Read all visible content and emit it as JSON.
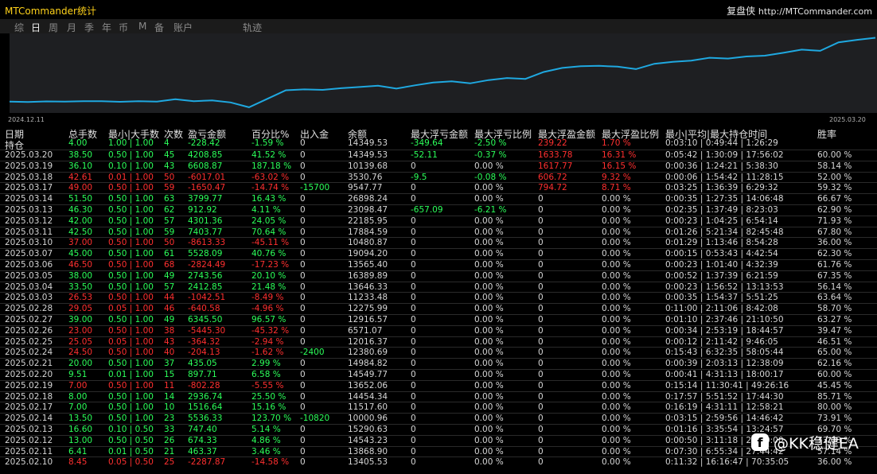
{
  "window": {
    "title": "MTCommander统计",
    "brand": "复盘侠",
    "url": "http://MTCommander.com"
  },
  "tabs": [
    "综",
    "日",
    "周",
    "月",
    "季",
    "年",
    "币",
    "M",
    "备",
    "账户",
    "轨迹"
  ],
  "active_tab": "日",
  "chart": {
    "start_label": "2024.12.11",
    "end_label": "2025.03.20",
    "line_color": "#1fa8e0"
  },
  "headers": [
    "日期",
    "总手数",
    "最小|大手数",
    "次数",
    "盈亏金额",
    "百分比%",
    "出入金",
    "余额",
    "最大浮亏金额",
    "最大浮亏比例",
    "最大浮盈金额",
    "最大浮盈比例",
    "最小|平均|最大持仓时间",
    "胜率"
  ],
  "subheader": {
    "label": "持仓",
    "total_lots": "4.00",
    "minmax": "1.00 | 1.00",
    "count": "4",
    "pnl": "-228.42",
    "pct": "-1.59 %",
    "flow": "0",
    "balance": "14349.53",
    "max_float_loss": "-349.64",
    "max_float_loss_pct": "-2.50 %",
    "max_float_profit": "239.22",
    "max_float_profit_pct": "1.70 %",
    "hold_time": "0:03:10 | 0:49:44 | 1:26:29",
    "winrate": ""
  },
  "rows": [
    {
      "date": "2025.03.20",
      "lots": "38.50",
      "minmax": "0.50 | 1.00",
      "count": "45",
      "pnl": "4208.85",
      "pct": "41.52 %",
      "flow": "0",
      "balance": "14349.53",
      "mfl": "-52.11",
      "mflp": "-0.37 %",
      "mfp": "1633.78",
      "mfpp": "16.31 %",
      "hold": "0:05:42 | 1:30:09 | 17:56:02",
      "win": "60.00 %",
      "sign": "pos"
    },
    {
      "date": "2025.03.19",
      "lots": "36.10",
      "minmax": "0.10 | 1.00",
      "count": "43",
      "pnl": "6608.87",
      "pct": "187.18 %",
      "flow": "0",
      "balance": "10139.68",
      "mfl": "0",
      "mflp": "0.00 %",
      "mfp": "1617.77",
      "mfpp": "16.15 %",
      "hold": "0:00:36 | 1:24:21 | 5:38:30",
      "win": "58.14 %",
      "sign": "pos"
    },
    {
      "date": "2025.03.18",
      "lots": "42.61",
      "minmax": "0.01 | 1.00",
      "count": "50",
      "pnl": "-6017.01",
      "pct": "-63.02 %",
      "flow": "0",
      "balance": "3530.76",
      "mfl": "-9.5",
      "mflp": "-0.08 %",
      "mfp": "606.72",
      "mfpp": "9.32 %",
      "hold": "0:00:06 | 1:54:42 | 11:28:15",
      "win": "52.00 %",
      "sign": "neg"
    },
    {
      "date": "2025.03.17",
      "lots": "49.00",
      "minmax": "0.50 | 1.00",
      "count": "59",
      "pnl": "-1650.47",
      "pct": "-14.74 %",
      "flow": "-15700",
      "balance": "9547.77",
      "mfl": "0",
      "mflp": "0.00 %",
      "mfp": "794.72",
      "mfpp": "8.71 %",
      "hold": "0:03:25 | 1:36:39 | 6:29:32",
      "win": "59.32 %",
      "sign": "neg"
    },
    {
      "date": "2025.03.14",
      "lots": "51.50",
      "minmax": "0.50 | 1.00",
      "count": "63",
      "pnl": "3799.77",
      "pct": "16.43 %",
      "flow": "0",
      "balance": "26898.24",
      "mfl": "0",
      "mflp": "0.00 %",
      "mfp": "0",
      "mfpp": "0.00 %",
      "hold": "0:00:35 | 1:27:35 | 14:06:48",
      "win": "66.67 %",
      "sign": "pos"
    },
    {
      "date": "2025.03.13",
      "lots": "46.30",
      "minmax": "0.50 | 1.00",
      "count": "62",
      "pnl": "912.92",
      "pct": "4.11 %",
      "flow": "0",
      "balance": "23098.47",
      "mfl": "-657.09",
      "mflp": "-6.21 %",
      "mfp": "0",
      "mfpp": "0.00 %",
      "hold": "0:02:35 | 1:37:49 | 8:23:03",
      "win": "62.90 %",
      "sign": "pos"
    },
    {
      "date": "2025.03.12",
      "lots": "42.00",
      "minmax": "0.50 | 1.00",
      "count": "57",
      "pnl": "4301.36",
      "pct": "24.05 %",
      "flow": "0",
      "balance": "22185.95",
      "mfl": "0",
      "mflp": "0.00 %",
      "mfp": "0",
      "mfpp": "0.00 %",
      "hold": "0:00:23 | 1:04:25 | 6:54:14",
      "win": "71.93 %",
      "sign": "pos"
    },
    {
      "date": "2025.03.11",
      "lots": "42.50",
      "minmax": "0.50 | 1.00",
      "count": "59",
      "pnl": "7403.77",
      "pct": "70.64 %",
      "flow": "0",
      "balance": "17884.59",
      "mfl": "0",
      "mflp": "0.00 %",
      "mfp": "0",
      "mfpp": "0.00 %",
      "hold": "0:01:26 | 5:21:34 | 82:45:48",
      "win": "67.80 %",
      "sign": "pos"
    },
    {
      "date": "2025.03.10",
      "lots": "37.00",
      "minmax": "0.50 | 1.00",
      "count": "50",
      "pnl": "-8613.33",
      "pct": "-45.11 %",
      "flow": "0",
      "balance": "10480.87",
      "mfl": "0",
      "mflp": "0.00 %",
      "mfp": "0",
      "mfpp": "0.00 %",
      "hold": "0:01:29 | 1:13:46 | 8:54:28",
      "win": "36.00 %",
      "sign": "neg"
    },
    {
      "date": "2025.03.07",
      "lots": "45.00",
      "minmax": "0.50 | 1.00",
      "count": "61",
      "pnl": "5528.09",
      "pct": "40.76 %",
      "flow": "0",
      "balance": "19094.20",
      "mfl": "0",
      "mflp": "0.00 %",
      "mfp": "0",
      "mfpp": "0.00 %",
      "hold": "0:00:15 | 0:53:43 | 4:42:54",
      "win": "62.30 %",
      "sign": "pos"
    },
    {
      "date": "2025.03.06",
      "lots": "46.50",
      "minmax": "0.50 | 1.00",
      "count": "68",
      "pnl": "-2824.49",
      "pct": "-17.23 %",
      "flow": "0",
      "balance": "13565.40",
      "mfl": "0",
      "mflp": "0.00 %",
      "mfp": "0",
      "mfpp": "0.00 %",
      "hold": "0:00:23 | 1:01:40 | 4:32:39",
      "win": "61.76 %",
      "sign": "neg"
    },
    {
      "date": "2025.03.05",
      "lots": "38.00",
      "minmax": "0.50 | 1.00",
      "count": "49",
      "pnl": "2743.56",
      "pct": "20.10 %",
      "flow": "0",
      "balance": "16389.89",
      "mfl": "0",
      "mflp": "0.00 %",
      "mfp": "0",
      "mfpp": "0.00 %",
      "hold": "0:00:52 | 1:37:39 | 6:21:59",
      "win": "67.35 %",
      "sign": "pos"
    },
    {
      "date": "2025.03.04",
      "lots": "33.50",
      "minmax": "0.50 | 1.00",
      "count": "57",
      "pnl": "2412.85",
      "pct": "21.48 %",
      "flow": "0",
      "balance": "13646.33",
      "mfl": "0",
      "mflp": "0.00 %",
      "mfp": "0",
      "mfpp": "0.00 %",
      "hold": "0:00:23 | 1:56:52 | 13:13:53",
      "win": "56.14 %",
      "sign": "pos"
    },
    {
      "date": "2025.03.03",
      "lots": "26.53",
      "minmax": "0.50 | 1.00",
      "count": "44",
      "pnl": "-1042.51",
      "pct": "-8.49 %",
      "flow": "0",
      "balance": "11233.48",
      "mfl": "0",
      "mflp": "0.00 %",
      "mfp": "0",
      "mfpp": "0.00 %",
      "hold": "0:00:35 | 1:54:37 | 5:51:25",
      "win": "63.64 %",
      "sign": "neg"
    },
    {
      "date": "2025.02.28",
      "lots": "29.05",
      "minmax": "0.05 | 1.00",
      "count": "46",
      "pnl": "-640.58",
      "pct": "-4.96 %",
      "flow": "0",
      "balance": "12275.99",
      "mfl": "0",
      "mflp": "0.00 %",
      "mfp": "0",
      "mfpp": "0.00 %",
      "hold": "0:11:00 | 2:11:06 | 8:42:08",
      "win": "58.70 %",
      "sign": "neg"
    },
    {
      "date": "2025.02.27",
      "lots": "39.00",
      "minmax": "0.50 | 1.00",
      "count": "49",
      "pnl": "6345.50",
      "pct": "96.57 %",
      "flow": "0",
      "balance": "12916.57",
      "mfl": "0",
      "mflp": "0.00 %",
      "mfp": "0",
      "mfpp": "0.00 %",
      "hold": "0:01:10 | 2:37:46 | 21:10:50",
      "win": "63.27 %",
      "sign": "pos"
    },
    {
      "date": "2025.02.26",
      "lots": "23.00",
      "minmax": "0.50 | 1.00",
      "count": "38",
      "pnl": "-5445.30",
      "pct": "-45.32 %",
      "flow": "0",
      "balance": "6571.07",
      "mfl": "0",
      "mflp": "0.00 %",
      "mfp": "0",
      "mfpp": "0.00 %",
      "hold": "0:00:34 | 2:53:19 | 18:44:57",
      "win": "39.47 %",
      "sign": "neg"
    },
    {
      "date": "2025.02.25",
      "lots": "25.05",
      "minmax": "0.05 | 1.00",
      "count": "43",
      "pnl": "-364.32",
      "pct": "-2.94 %",
      "flow": "0",
      "balance": "12016.37",
      "mfl": "0",
      "mflp": "0.00 %",
      "mfp": "0",
      "mfpp": "0.00 %",
      "hold": "0:00:12 | 2:11:42 | 9:46:05",
      "win": "46.51 %",
      "sign": "neg"
    },
    {
      "date": "2025.02.24",
      "lots": "24.50",
      "minmax": "0.50 | 1.00",
      "count": "40",
      "pnl": "-204.13",
      "pct": "-1.62 %",
      "flow": "-2400",
      "balance": "12380.69",
      "mfl": "0",
      "mflp": "0.00 %",
      "mfp": "0",
      "mfpp": "0.00 %",
      "hold": "0:15:43 | 6:32:35 | 58:05:44",
      "win": "65.00 %",
      "sign": "neg"
    },
    {
      "date": "2025.02.21",
      "lots": "20.00",
      "minmax": "0.50 | 1.00",
      "count": "37",
      "pnl": "435.05",
      "pct": "2.99 %",
      "flow": "0",
      "balance": "14984.82",
      "mfl": "0",
      "mflp": "0.00 %",
      "mfp": "0",
      "mfpp": "0.00 %",
      "hold": "0:00:39 | 2:03:13 | 12:38:09",
      "win": "62.16 %",
      "sign": "pos"
    },
    {
      "date": "2025.02.20",
      "lots": "9.51",
      "minmax": "0.01 | 1.00",
      "count": "15",
      "pnl": "897.71",
      "pct": "6.58 %",
      "flow": "0",
      "balance": "14549.77",
      "mfl": "0",
      "mflp": "0.00 %",
      "mfp": "0",
      "mfpp": "0.00 %",
      "hold": "0:00:41 | 4:31:13 | 18:00:17",
      "win": "60.00 %",
      "sign": "pos"
    },
    {
      "date": "2025.02.19",
      "lots": "7.00",
      "minmax": "0.50 | 1.00",
      "count": "11",
      "pnl": "-802.28",
      "pct": "-5.55 %",
      "flow": "0",
      "balance": "13652.06",
      "mfl": "0",
      "mflp": "0.00 %",
      "mfp": "0",
      "mfpp": "0.00 %",
      "hold": "0:15:14 | 11:30:41 | 49:26:16",
      "win": "45.45 %",
      "sign": "neg"
    },
    {
      "date": "2025.02.18",
      "lots": "8.00",
      "minmax": "0.50 | 1.00",
      "count": "14",
      "pnl": "2936.74",
      "pct": "25.50 %",
      "flow": "0",
      "balance": "14454.34",
      "mfl": "0",
      "mflp": "0.00 %",
      "mfp": "0",
      "mfpp": "0.00 %",
      "hold": "0:17:57 | 5:51:52 | 17:44:30",
      "win": "85.71 %",
      "sign": "pos"
    },
    {
      "date": "2025.02.17",
      "lots": "7.00",
      "minmax": "0.50 | 1.00",
      "count": "10",
      "pnl": "1516.64",
      "pct": "15.16 %",
      "flow": "0",
      "balance": "11517.60",
      "mfl": "0",
      "mflp": "0.00 %",
      "mfp": "0",
      "mfpp": "0.00 %",
      "hold": "0:16:19 | 4:31:11 | 12:58:21",
      "win": "80.00 %",
      "sign": "pos"
    },
    {
      "date": "2025.02.14",
      "lots": "13.50",
      "minmax": "0.50 | 1.00",
      "count": "23",
      "pnl": "5536.33",
      "pct": "123.70 %",
      "flow": "-10820",
      "balance": "10000.96",
      "mfl": "0",
      "mflp": "0.00 %",
      "mfp": "0",
      "mfpp": "0.00 %",
      "hold": "0:03:15 | 2:59:56 | 14:46:42",
      "win": "73.91 %",
      "sign": "pos"
    },
    {
      "date": "2025.02.13",
      "lots": "16.60",
      "minmax": "0.10 | 0.50",
      "count": "33",
      "pnl": "747.40",
      "pct": "5.14 %",
      "flow": "0",
      "balance": "15290.63",
      "mfl": "0",
      "mflp": "0.00 %",
      "mfp": "0",
      "mfpp": "0.00 %",
      "hold": "0:01:16 | 3:35:54 | 13:24:57",
      "win": "69.70 %",
      "sign": "pos"
    },
    {
      "date": "2025.02.12",
      "lots": "13.00",
      "minmax": "0.50 | 0.50",
      "count": "26",
      "pnl": "674.33",
      "pct": "4.86 %",
      "flow": "0",
      "balance": "14543.23",
      "mfl": "0",
      "mflp": "0.00 %",
      "mfp": "0",
      "mfpp": "0.00 %",
      "hold": "0:00:50 | 3:11:18 | 24:00:00",
      "win": "73.08 %",
      "sign": "pos"
    },
    {
      "date": "2025.02.11",
      "lots": "6.41",
      "minmax": "0.01 | 0.50",
      "count": "21",
      "pnl": "463.37",
      "pct": "3.46 %",
      "flow": "0",
      "balance": "13868.90",
      "mfl": "0",
      "mflp": "0.00 %",
      "mfp": "0",
      "mfpp": "0.00 %",
      "hold": "0:07:30 | 6:55:34 | 27:44:42",
      "win": "57.14 %",
      "sign": "pos"
    },
    {
      "date": "2025.02.10",
      "lots": "8.45",
      "minmax": "0.05 | 0.50",
      "count": "25",
      "pnl": "-2287.87",
      "pct": "-14.58 %",
      "flow": "0",
      "balance": "13405.53",
      "mfl": "0",
      "mflp": "0.00 %",
      "mfp": "0",
      "mfpp": "0.00 %",
      "hold": "0:11:32 | 16:16:47 | 70:35:05",
      "win": "36.00 %",
      "sign": "neg"
    }
  ],
  "watermark": {
    "text": "@KK稳健EA"
  }
}
